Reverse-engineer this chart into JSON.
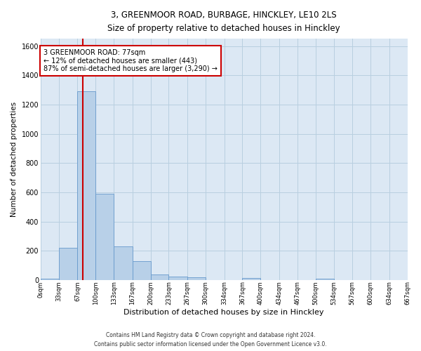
{
  "title_line1": "3, GREENMOOR ROAD, BURBAGE, HINCKLEY, LE10 2LS",
  "title_line2": "Size of property relative to detached houses in Hinckley",
  "xlabel": "Distribution of detached houses by size in Hinckley",
  "ylabel": "Number of detached properties",
  "bar_edges": [
    0,
    33,
    67,
    100,
    133,
    167,
    200,
    233,
    267,
    300,
    334,
    367,
    400,
    434,
    467,
    500,
    534,
    567,
    600,
    634,
    667
  ],
  "bar_heights": [
    10,
    220,
    1290,
    590,
    230,
    130,
    40,
    25,
    20,
    0,
    0,
    15,
    0,
    0,
    0,
    10,
    0,
    0,
    0,
    0
  ],
  "bar_color": "#b8d0e8",
  "bar_edge_color": "#6699cc",
  "property_size": 77,
  "red_line_color": "#cc0000",
  "annotation_text": "3 GREENMOOR ROAD: 77sqm\n← 12% of detached houses are smaller (443)\n87% of semi-detached houses are larger (3,290) →",
  "annotation_box_color": "#ffffff",
  "annotation_box_edge": "#cc0000",
  "ylim": [
    0,
    1650
  ],
  "yticks": [
    0,
    200,
    400,
    600,
    800,
    1000,
    1200,
    1400,
    1600
  ],
  "tick_labels": [
    "0sqm",
    "33sqm",
    "67sqm",
    "100sqm",
    "133sqm",
    "167sqm",
    "200sqm",
    "233sqm",
    "267sqm",
    "300sqm",
    "334sqm",
    "367sqm",
    "400sqm",
    "434sqm",
    "467sqm",
    "500sqm",
    "534sqm",
    "567sqm",
    "600sqm",
    "634sqm",
    "667sqm"
  ],
  "footer_line1": "Contains HM Land Registry data © Crown copyright and database right 2024.",
  "footer_line2": "Contains public sector information licensed under the Open Government Licence v3.0.",
  "bg_color": "#ffffff",
  "plot_bg_color": "#dce8f4",
  "grid_color": "#b8cfe0",
  "fig_width": 6.0,
  "fig_height": 5.0
}
